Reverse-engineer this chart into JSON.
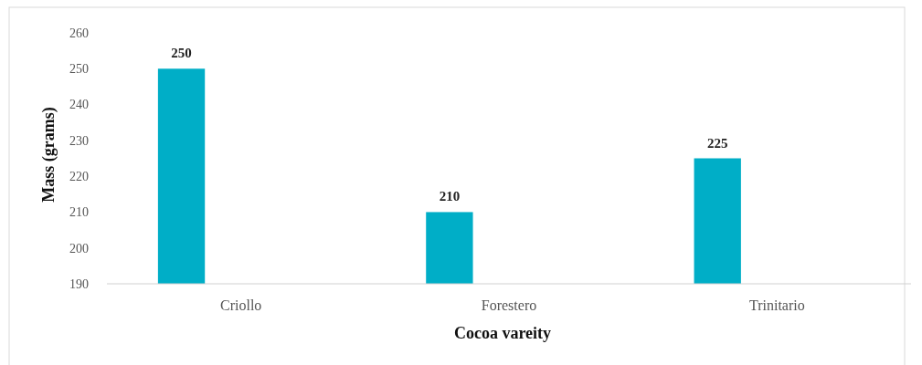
{
  "chart_data": {
    "type": "bar",
    "xlabel": "Cocoa vareity",
    "ylabel": "Mass (grams)",
    "categories": [
      "Criollo",
      "Forestero",
      "Trinitario"
    ],
    "values": [
      250,
      210,
      225
    ],
    "color": "#00aec7",
    "ylim": [
      190,
      260
    ],
    "yticks": [
      190,
      200,
      210,
      220,
      230,
      240,
      250,
      260
    ],
    "data_labels": true
  }
}
